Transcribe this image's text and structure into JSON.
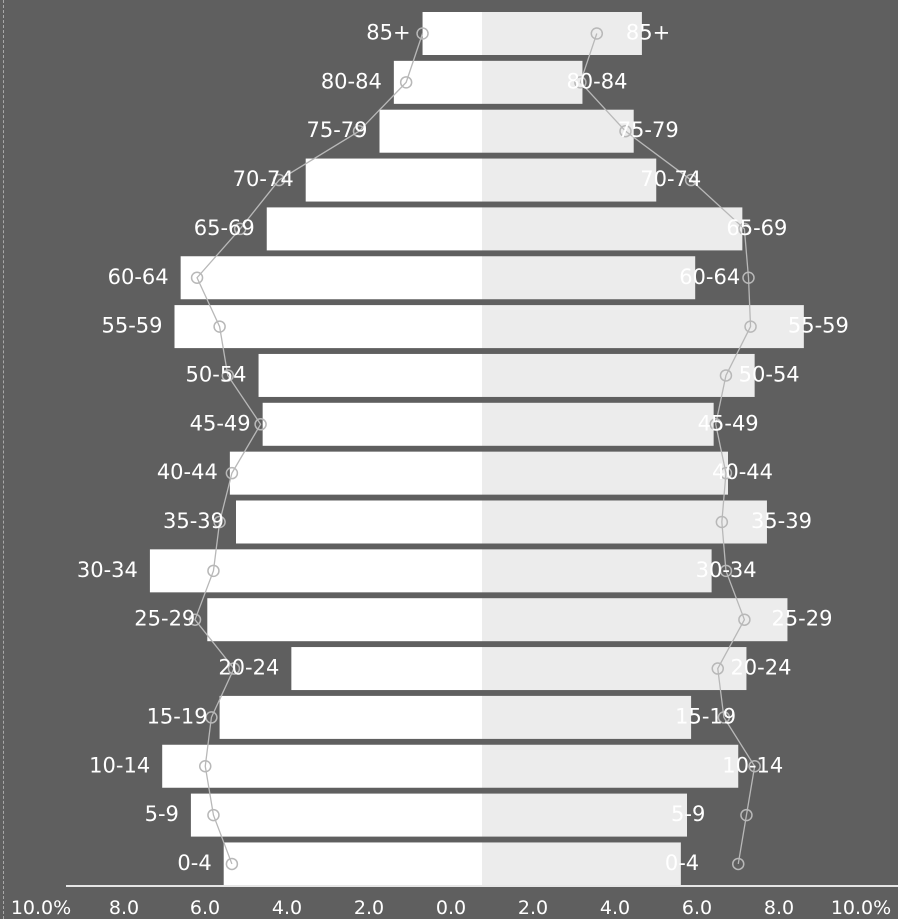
{
  "chart_data": {
    "type": "bar",
    "orientation": "horizontal",
    "layout": "population-pyramid",
    "categories": [
      "85+",
      "80-84",
      "75-79",
      "70-74",
      "65-69",
      "60-64",
      "55-59",
      "50-54",
      "45-49",
      "40-44",
      "35-39",
      "30-34",
      "25-29",
      "20-24",
      "15-19",
      "10-14",
      "5-9",
      "0-4"
    ],
    "series": [
      {
        "side": "left",
        "values": [
          1.45,
          2.15,
          2.5,
          4.3,
          5.25,
          7.35,
          7.5,
          5.45,
          5.35,
          6.15,
          6.0,
          8.1,
          6.7,
          4.65,
          6.4,
          7.8,
          7.1,
          6.3
        ]
      },
      {
        "side": "right",
        "values": [
          3.9,
          2.45,
          3.7,
          4.25,
          6.35,
          5.2,
          7.85,
          6.65,
          5.65,
          6.0,
          6.95,
          5.6,
          7.45,
          6.45,
          5.1,
          6.25,
          5.0,
          4.85
        ]
      }
    ],
    "markers": {
      "left": [
        1.45,
        1.85,
        3.0,
        4.95,
        5.9,
        6.95,
        6.4,
        6.2,
        5.4,
        6.1,
        6.4,
        6.55,
        7.0,
        6.05,
        6.6,
        6.75,
        6.55,
        6.1
      ],
      "right": [
        2.8,
        2.4,
        3.5,
        5.1,
        6.4,
        6.5,
        6.55,
        5.95,
        5.7,
        5.95,
        5.85,
        5.95,
        6.4,
        5.75,
        5.9,
        6.65,
        6.45,
        6.25
      ]
    },
    "x_ticks_left": [
      "10.0%",
      "8.0",
      "6.0",
      "4.0",
      "2.0"
    ],
    "x_ticks_center": "0.0",
    "x_ticks_right": [
      "2.0",
      "4.0",
      "6.0",
      "8.0",
      "10.0%"
    ],
    "xlim": [
      -10,
      10
    ],
    "grid": false,
    "legend": "none",
    "colors": {
      "background": "#5f5f5f",
      "left_bar": "#ffffff",
      "right_bar": "#ececec",
      "marker": "#b8b8b8",
      "text": "#ffffff",
      "axis": "#e6e6e6"
    }
  }
}
